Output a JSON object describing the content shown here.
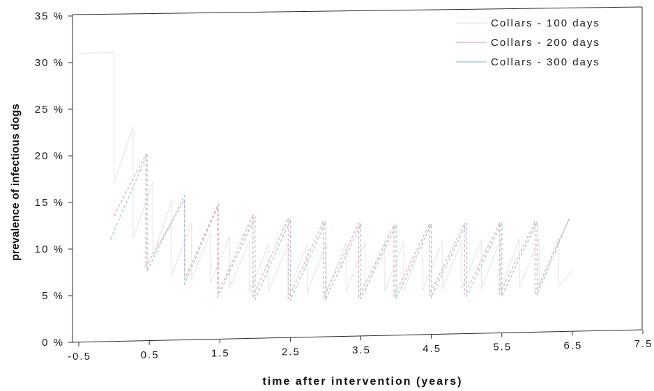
{
  "chart_data": {
    "type": "line",
    "title": "",
    "xlabel": "time after intervention (years)",
    "ylabel": "prevalence of infectious dogs",
    "xlim": [
      -0.5,
      7.5
    ],
    "ylim": [
      0,
      0.35
    ],
    "x_ticks": [
      -0.5,
      0.5,
      1.5,
      2.5,
      3.5,
      4.5,
      5.5,
      6.5,
      7.5
    ],
    "x_tick_labels": [
      "-0.5",
      "0.5",
      "1.5",
      "2.5",
      "3.5",
      "4.5",
      "5.5",
      "6.5",
      "7.5"
    ],
    "y_ticks": [
      0,
      0.05,
      0.1,
      0.15,
      0.2,
      0.25,
      0.3,
      0.35
    ],
    "y_tick_labels": [
      "0 %",
      "5 %",
      "10 %",
      "15 %",
      "20 %",
      "25 %",
      "30 %",
      "35 %"
    ],
    "grid": false,
    "legend_position": "top-right",
    "series": [
      {
        "name": "Collars - 100 days",
        "color": "#e8e8e8",
        "x": [
          -0.5,
          0.0,
          0.0,
          0.27,
          0.27,
          0.55,
          0.55,
          0.82,
          0.82,
          1.1,
          1.1,
          1.37,
          1.37,
          1.64,
          1.64,
          1.92,
          1.92,
          2.19,
          2.19,
          2.47,
          2.47,
          2.74,
          2.74,
          3.01,
          3.01,
          3.29,
          3.29,
          3.56,
          3.56,
          3.84,
          3.84,
          4.11,
          4.11,
          4.38,
          4.38,
          4.66,
          4.66,
          4.93,
          4.93,
          5.21,
          5.21,
          5.48,
          5.48,
          5.75,
          5.75,
          6.03,
          6.03,
          6.3,
          6.3,
          6.5
        ],
        "y": [
          0.31,
          0.31,
          0.17,
          0.23,
          0.11,
          0.17,
          0.09,
          0.15,
          0.07,
          0.125,
          0.065,
          0.115,
          0.06,
          0.11,
          0.055,
          0.105,
          0.05,
          0.1,
          0.05,
          0.1,
          0.048,
          0.1,
          0.048,
          0.1,
          0.048,
          0.1,
          0.048,
          0.1,
          0.048,
          0.1,
          0.048,
          0.1,
          0.048,
          0.1,
          0.048,
          0.1,
          0.048,
          0.1,
          0.048,
          0.1,
          0.048,
          0.1,
          0.048,
          0.1,
          0.048,
          0.1,
          0.048,
          0.1,
          0.048,
          0.065
        ]
      },
      {
        "name": "Collars - 200 days",
        "color": "#e7a9b7",
        "x": [
          0.0,
          0.45,
          0.45,
          1.0,
          1.0,
          1.48,
          1.48,
          1.97,
          1.97,
          2.47,
          2.47,
          2.97,
          2.97,
          3.47,
          3.47,
          3.97,
          3.97,
          4.47,
          4.47,
          4.97,
          4.97,
          5.47,
          5.47,
          5.97,
          5.97,
          6.45
        ],
        "y": [
          0.135,
          0.2,
          0.08,
          0.15,
          0.065,
          0.145,
          0.05,
          0.132,
          0.045,
          0.128,
          0.042,
          0.124,
          0.042,
          0.121,
          0.042,
          0.118,
          0.042,
          0.118,
          0.042,
          0.118,
          0.042,
          0.118,
          0.042,
          0.118,
          0.042,
          0.12
        ]
      },
      {
        "name": "Collars - 300 days",
        "color": "#9ec8cc",
        "x": [
          -0.05,
          0.47,
          0.47,
          1.0,
          1.0,
          1.47,
          1.47,
          2.0,
          2.0,
          2.5,
          2.5,
          3.0,
          3.0,
          3.5,
          3.5,
          4.0,
          4.0,
          4.5,
          4.5,
          5.0,
          5.0,
          5.5,
          5.5,
          6.0,
          6.0,
          6.45
        ],
        "y": [
          0.11,
          0.2,
          0.075,
          0.155,
          0.06,
          0.142,
          0.045,
          0.13,
          0.042,
          0.126,
          0.04,
          0.123,
          0.04,
          0.12,
          0.04,
          0.118,
          0.04,
          0.118,
          0.04,
          0.118,
          0.04,
          0.118,
          0.04,
          0.118,
          0.04,
          0.12
        ]
      }
    ]
  }
}
